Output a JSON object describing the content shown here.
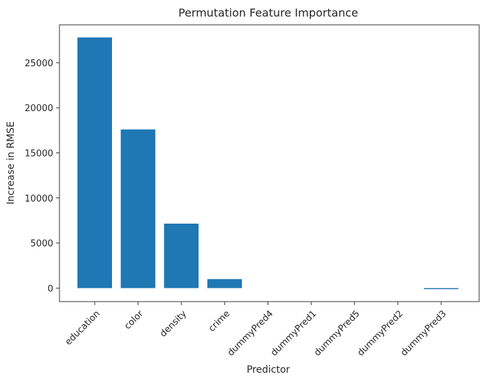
{
  "chart_data": {
    "type": "bar",
    "title": "Permutation Feature Importance",
    "xlabel": "Predictor",
    "ylabel": "Increase in RMSE",
    "categories": [
      "education",
      "color",
      "density",
      "crime",
      "dummyPred4",
      "dummyPred1",
      "dummyPred5",
      "dummyPred2",
      "dummyPred3"
    ],
    "values": [
      27800,
      17600,
      7150,
      1000,
      0,
      0,
      0,
      0,
      -80
    ],
    "yticks": [
      0,
      5000,
      10000,
      15000,
      20000,
      25000
    ],
    "ylim": [
      -1500,
      29200
    ],
    "bar_color": "#1f77b4",
    "grid": false,
    "legend": "none"
  }
}
